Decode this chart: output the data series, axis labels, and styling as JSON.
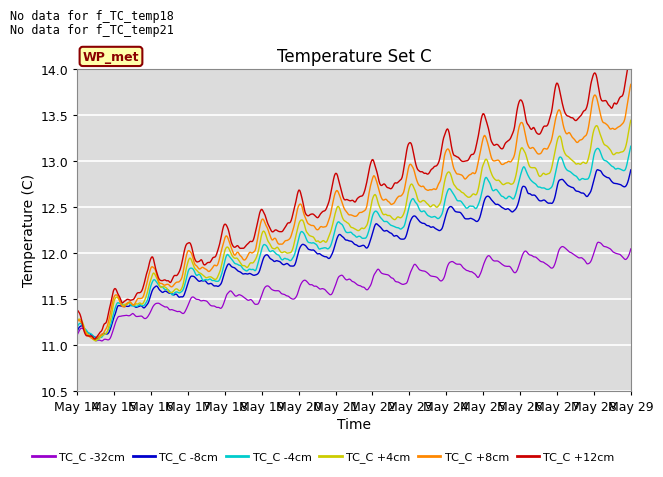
{
  "title": "Temperature Set C",
  "xlabel": "Time",
  "ylabel": "Temperature (C)",
  "ylim": [
    10.5,
    14.0
  ],
  "yticks": [
    10.5,
    11.0,
    11.5,
    12.0,
    12.5,
    13.0,
    13.5,
    14.0
  ],
  "note1": "No data for f_TC_temp18",
  "note2": "No data for f_TC_temp21",
  "legend_label": "WP_met",
  "series_labels": [
    "TC_C -32cm",
    "TC_C -8cm",
    "TC_C -4cm",
    "TC_C +4cm",
    "TC_C +8cm",
    "TC_C +12cm"
  ],
  "series_colors": [
    "#9900CC",
    "#0000CC",
    "#00CCCC",
    "#CCCC00",
    "#FF8800",
    "#CC0000"
  ],
  "x_tick_labels": [
    "May 14",
    "May 15",
    "May 16",
    "May 17",
    "May 18",
    "May 19",
    "May 20",
    "May 21",
    "May 22",
    "May 23",
    "May 24",
    "May 25",
    "May 26",
    "May 27",
    "May 28",
    "May 29"
  ],
  "plot_bg_color": "#DCDCDC",
  "base_starts": [
    11.22,
    11.22,
    11.22,
    11.22,
    11.22,
    11.25
  ],
  "base_ends": [
    12.05,
    12.85,
    13.05,
    13.25,
    13.55,
    13.82
  ],
  "noise_scales": [
    0.015,
    0.018,
    0.022,
    0.025,
    0.028,
    0.03
  ],
  "spike_amp": [
    0.06,
    0.07,
    0.09,
    0.11,
    0.12,
    0.13
  ],
  "dip_depth": 0.22,
  "dip_day": 0.5
}
